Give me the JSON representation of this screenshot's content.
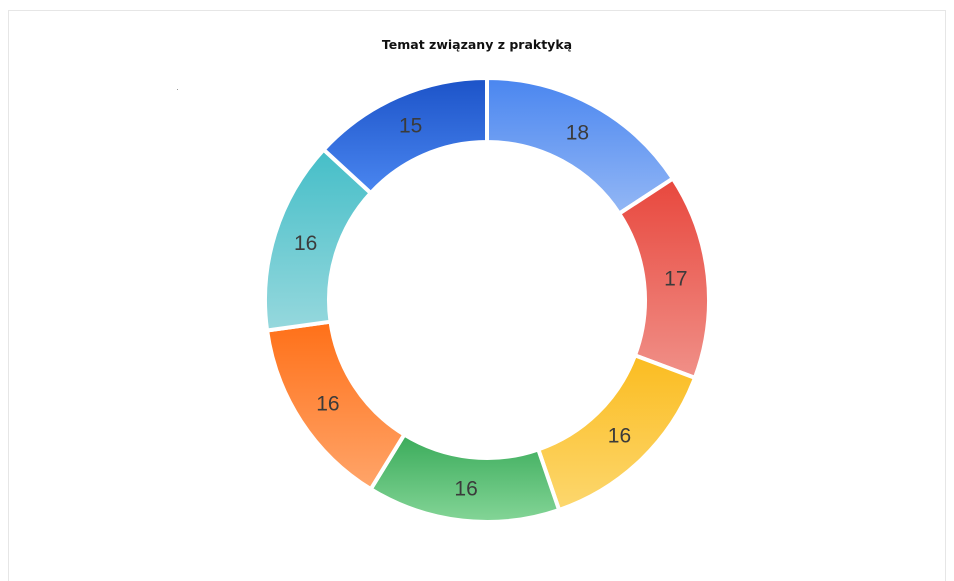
{
  "chart_data": {
    "type": "pie",
    "donut": true,
    "title": "Temat związany z praktyką",
    "values": [
      18,
      17,
      16,
      16,
      16,
      16,
      15
    ],
    "labels": [
      "18",
      "17",
      "16",
      "16",
      "16",
      "16",
      "15"
    ],
    "colors": [
      [
        "#4a86f0",
        "#93b7f5"
      ],
      [
        "#e8473d",
        "#f09088"
      ],
      [
        "#fbbc20",
        "#fcd76e"
      ],
      [
        "#3aab5a",
        "#84d597"
      ],
      [
        "#ff7018",
        "#ffa56a"
      ],
      [
        "#45bec8",
        "#96d8dd"
      ],
      [
        "#1c53c8",
        "#4a86f0"
      ]
    ],
    "legend": "none"
  }
}
